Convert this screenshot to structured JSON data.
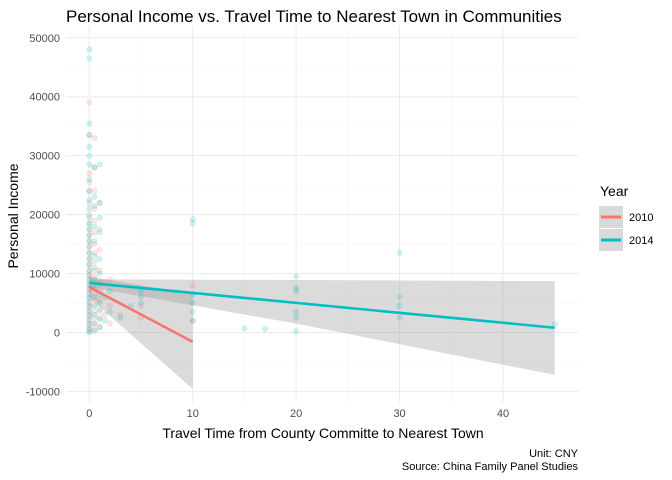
{
  "colors": {
    "series_2010": "#F8766D",
    "series_2014": "#00BFC4",
    "ribbon": "#999999",
    "grid_major": "#ebebeb",
    "grid_minor": "#f5f5f5"
  },
  "chart_data": {
    "type": "scatter",
    "title": "Personal Income vs. Travel Time to Nearest Town in Communities",
    "xlabel": "Travel Time from County Committe to Nearest Town",
    "ylabel": "Personal Income",
    "xlim": [
      -2.25,
      47.25
    ],
    "ylim": [
      -11800,
      52000
    ],
    "x_ticks": [
      0,
      10,
      20,
      30,
      40
    ],
    "y_ticks": [
      -10000,
      0,
      10000,
      20000,
      30000,
      40000,
      50000
    ],
    "y_tick_labels": [
      "-10000",
      "0",
      "10000",
      "20000",
      "30000",
      "40000",
      "50000"
    ],
    "grid": true,
    "legend": {
      "title": "Year",
      "position": "right",
      "entries": [
        "2010",
        "2014"
      ]
    },
    "caption": {
      "line1": "Unit: CNY",
      "line2": "Source: China Family Panel Studies"
    },
    "series": [
      {
        "name": "2010",
        "points": [
          [
            0,
            200
          ],
          [
            0,
            800
          ],
          [
            0,
            1500
          ],
          [
            0,
            2200
          ],
          [
            0,
            3000
          ],
          [
            0,
            3800
          ],
          [
            0,
            4500
          ],
          [
            0,
            5200
          ],
          [
            0,
            6000
          ],
          [
            0,
            6800
          ],
          [
            0,
            7500
          ],
          [
            0,
            8300
          ],
          [
            0,
            9000
          ],
          [
            0,
            9800
          ],
          [
            0,
            10500
          ],
          [
            0,
            11500
          ],
          [
            0,
            12500
          ],
          [
            0,
            13500
          ],
          [
            0,
            14500
          ],
          [
            0,
            15500
          ],
          [
            0,
            16500
          ],
          [
            0,
            17500
          ],
          [
            0,
            18500
          ],
          [
            0,
            20000
          ],
          [
            0,
            22000
          ],
          [
            0,
            24000
          ],
          [
            0,
            25500
          ],
          [
            0,
            27000
          ],
          [
            0,
            33500
          ],
          [
            0,
            39000
          ],
          [
            0.5,
            500
          ],
          [
            0.5,
            1500
          ],
          [
            0.5,
            2500
          ],
          [
            0.5,
            3500
          ],
          [
            0.5,
            4500
          ],
          [
            0.5,
            5500
          ],
          [
            0.5,
            6500
          ],
          [
            0.5,
            7500
          ],
          [
            0.5,
            8500
          ],
          [
            0.5,
            9500
          ],
          [
            0.5,
            10500
          ],
          [
            0.5,
            12000
          ],
          [
            0.5,
            13500
          ],
          [
            0.5,
            15000
          ],
          [
            0.5,
            17000
          ],
          [
            0.5,
            19000
          ],
          [
            0.5,
            21000
          ],
          [
            0.5,
            24000
          ],
          [
            0.5,
            28000
          ],
          [
            0.5,
            33000
          ],
          [
            1,
            1000
          ],
          [
            1,
            2500
          ],
          [
            1,
            4000
          ],
          [
            1,
            5500
          ],
          [
            1,
            7000
          ],
          [
            1,
            8500
          ],
          [
            1,
            10500
          ],
          [
            1,
            14000
          ],
          [
            1,
            17500
          ],
          [
            1,
            22000
          ],
          [
            1.5,
            3000
          ],
          [
            1.5,
            8500
          ],
          [
            2,
            1500
          ],
          [
            2,
            4500
          ],
          [
            2,
            9000
          ],
          [
            3,
            3000
          ],
          [
            5,
            4500
          ],
          [
            5,
            2500
          ],
          [
            10,
            8000
          ],
          [
            10,
            2000
          ]
        ],
        "fit": {
          "x": [
            0,
            10
          ],
          "y": [
            7700,
            -1600
          ]
        },
        "ribbon": {
          "x": [
            0,
            10
          ],
          "upper": [
            9500,
            6500
          ],
          "lower": [
            5900,
            -9600
          ]
        }
      },
      {
        "name": "2014",
        "points": [
          [
            0,
            0
          ],
          [
            0,
            500
          ],
          [
            0,
            1200
          ],
          [
            0,
            2000
          ],
          [
            0,
            2800
          ],
          [
            0,
            3500
          ],
          [
            0,
            4300
          ],
          [
            0,
            5000
          ],
          [
            0,
            5800
          ],
          [
            0,
            6500
          ],
          [
            0,
            7300
          ],
          [
            0,
            8000
          ],
          [
            0,
            8800
          ],
          [
            0,
            9600
          ],
          [
            0,
            10500
          ],
          [
            0,
            11500
          ],
          [
            0,
            12500
          ],
          [
            0,
            13500
          ],
          [
            0,
            14600
          ],
          [
            0,
            15500
          ],
          [
            0,
            16500
          ],
          [
            0,
            17500
          ],
          [
            0,
            18500
          ],
          [
            0,
            19500
          ],
          [
            0,
            21000
          ],
          [
            0,
            22500
          ],
          [
            0,
            24000
          ],
          [
            0,
            26000
          ],
          [
            0,
            28500
          ],
          [
            0,
            30000
          ],
          [
            0,
            31500
          ],
          [
            0,
            33500
          ],
          [
            0,
            35500
          ],
          [
            0,
            46500
          ],
          [
            0,
            48000
          ],
          [
            0.5,
            300
          ],
          [
            0.5,
            1500
          ],
          [
            0.5,
            3000
          ],
          [
            0.5,
            4500
          ],
          [
            0.5,
            6000
          ],
          [
            0.5,
            7500
          ],
          [
            0.5,
            9000
          ],
          [
            0.5,
            11000
          ],
          [
            0.5,
            13000
          ],
          [
            0.5,
            15500
          ],
          [
            0.5,
            18000
          ],
          [
            0.5,
            21500
          ],
          [
            0.5,
            23000
          ],
          [
            0.5,
            28000
          ],
          [
            1,
            800
          ],
          [
            1,
            2200
          ],
          [
            1,
            3600
          ],
          [
            1,
            5000
          ],
          [
            1,
            6400
          ],
          [
            1,
            8200
          ],
          [
            1,
            10000
          ],
          [
            1,
            12500
          ],
          [
            1,
            17000
          ],
          [
            1,
            19500
          ],
          [
            1,
            22000
          ],
          [
            1,
            28500
          ],
          [
            1.5,
            2000
          ],
          [
            1.5,
            6000
          ],
          [
            2,
            3500
          ],
          [
            2,
            7000
          ],
          [
            3,
            2500
          ],
          [
            4,
            4500
          ],
          [
            5,
            5000
          ],
          [
            5,
            6000
          ],
          [
            5,
            7000
          ],
          [
            10,
            2000
          ],
          [
            10,
            3500
          ],
          [
            10,
            5000
          ],
          [
            10,
            6500
          ],
          [
            10,
            18500
          ],
          [
            10,
            19200
          ],
          [
            15,
            700
          ],
          [
            17,
            600
          ],
          [
            20,
            200
          ],
          [
            20,
            2500
          ],
          [
            20,
            3500
          ],
          [
            20,
            7000
          ],
          [
            20,
            7500
          ],
          [
            20,
            9500
          ],
          [
            30,
            2500
          ],
          [
            30,
            4500
          ],
          [
            30,
            6000
          ],
          [
            30,
            13500
          ],
          [
            45,
            1400
          ]
        ],
        "fit": {
          "x": [
            0,
            45
          ],
          "y": [
            8400,
            800
          ]
        },
        "ribbon": {
          "x": [
            0,
            20,
            45
          ],
          "upper": [
            9000,
            8900,
            8700
          ],
          "lower": [
            7700,
            1500,
            -7200
          ]
        }
      }
    ]
  }
}
